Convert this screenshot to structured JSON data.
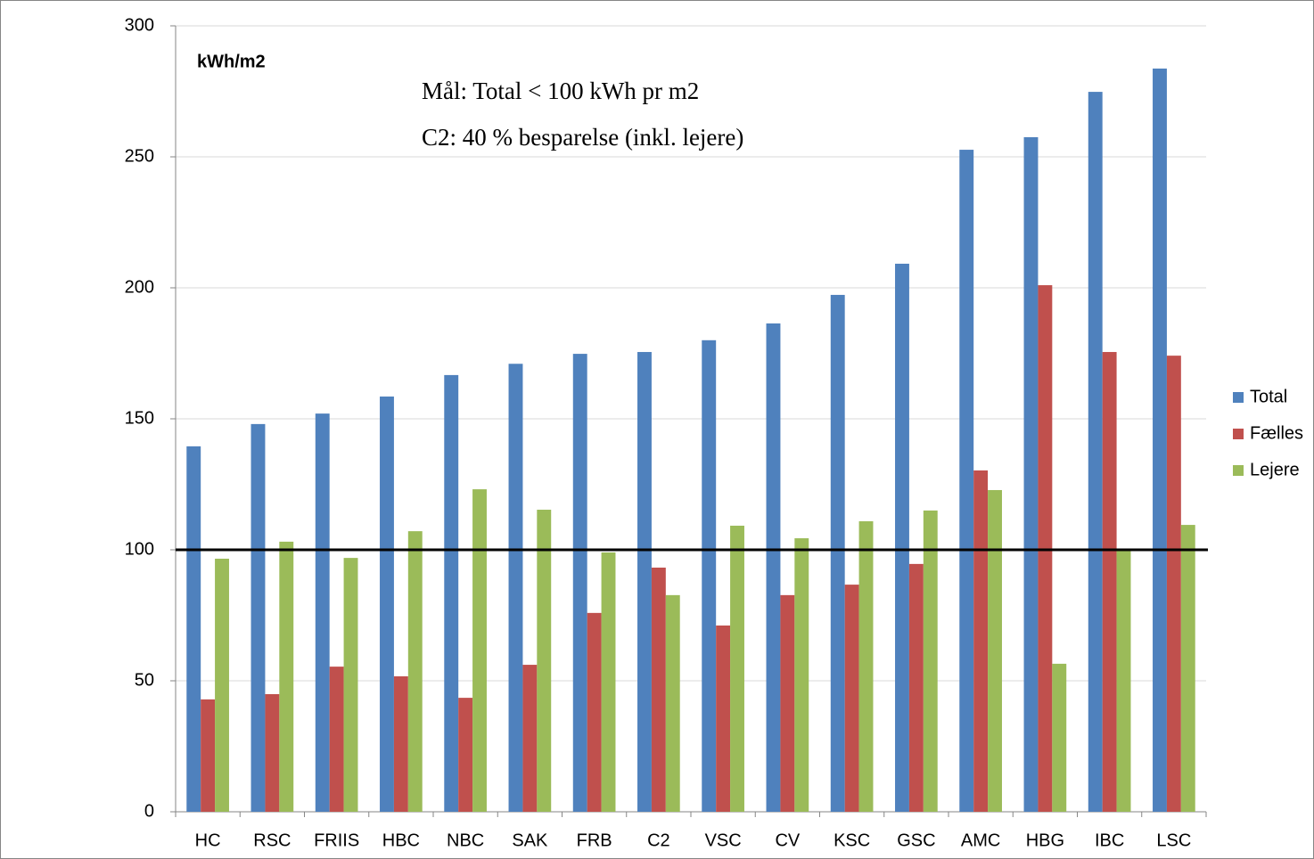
{
  "chart_data": {
    "type": "bar",
    "annotations": [
      "kWh/m2",
      "Mål: Total < 100 kWh pr m2",
      "C2: 40 % besparelse (inkl. lejere)"
    ],
    "categories": [
      "HC",
      "RSC",
      "FRIIS",
      "HBC",
      "NBC",
      "SAK",
      "FRB",
      "C2",
      "VSC",
      "CV",
      "KSC",
      "GSC",
      "AMC",
      "HBG",
      "IBC",
      "LSC"
    ],
    "series": [
      {
        "name": "Total",
        "color": "#4f81bd",
        "values": [
          139.5,
          148,
          152,
          158.5,
          166.7,
          171,
          174.8,
          175.5,
          180,
          186.4,
          197.3,
          209.2,
          252.7,
          257.5,
          274.8,
          283.7
        ]
      },
      {
        "name": "Fælles",
        "color": "#c0504d",
        "values": [
          42.9,
          44.9,
          55.4,
          51.7,
          43.5,
          56.1,
          75.9,
          93.2,
          71.1,
          82.7,
          86.7,
          94.6,
          130.3,
          201,
          175.5,
          174.1
        ]
      },
      {
        "name": "Lejere",
        "color": "#9bbb59",
        "values": [
          96.6,
          103.1,
          96.9,
          107.1,
          123.1,
          115.3,
          99,
          82.7,
          109.2,
          104.4,
          110.9,
          115,
          122.8,
          56.5,
          100,
          109.5
        ]
      }
    ],
    "reference_line": 100,
    "ylim": [
      0,
      300
    ],
    "yticks": [
      0,
      50,
      100,
      150,
      200,
      250,
      300
    ],
    "grid": true,
    "legend": "right"
  }
}
